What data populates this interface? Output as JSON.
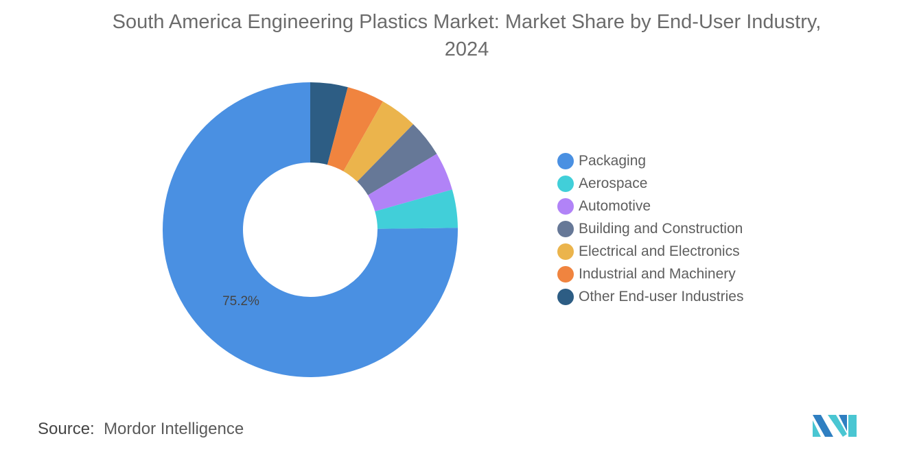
{
  "title": "South America Engineering Plastics Market: Market Share by End-User Industry, 2024",
  "source_label": "Source:",
  "source_value": "Mordor Intelligence",
  "logo_text": "Mordor Intelligence",
  "chart_data": {
    "type": "pie",
    "donut": true,
    "title": "South America Engineering Plastics Market: Market Share by End-User Industry, 2024",
    "unit": "%",
    "legend_position": "right",
    "slices": [
      {
        "name": "Packaging",
        "value": 75.2,
        "color": "#4a90e2",
        "label": "75.2%"
      },
      {
        "name": "Aerospace",
        "value": 4.2,
        "color": "#41cfd9"
      },
      {
        "name": "Automotive",
        "value": 4.2,
        "color": "#b183f7"
      },
      {
        "name": "Building and Construction",
        "value": 4.1,
        "color": "#667897"
      },
      {
        "name": "Electrical and Electronics",
        "value": 4.1,
        "color": "#ebb44c"
      },
      {
        "name": "Industrial and Machinery",
        "value": 4.1,
        "color": "#f0843f"
      },
      {
        "name": "Other End-user Industries",
        "value": 4.1,
        "color": "#2d5d84"
      }
    ]
  }
}
